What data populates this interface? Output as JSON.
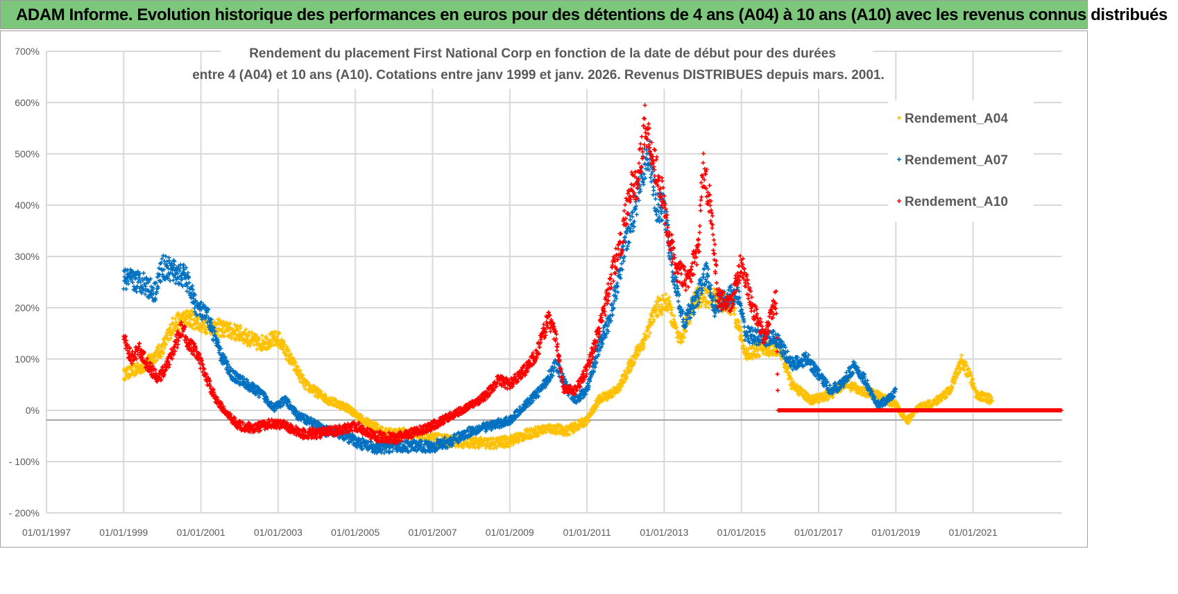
{
  "header": {
    "title": "ADAM Informe. Evolution historique des performances en euros pour des détentions de 4 ans (A04) à 10 ans (A10) avec les revenus connus distribués"
  },
  "chart_data": {
    "type": "scatter",
    "title_lines": [
      "Rendement du placement First National Corp en fonction de la date de début pour des durées",
      "entre 4 (A04) et 10 ans (A10).  Cotations entre janv 1999 et janv. 2026. Revenus DISTRIBUES depuis mars. 2001."
    ],
    "xlabel": "",
    "ylabel": "",
    "x_unit": "year",
    "xlim": [
      1997.0,
      2023.3
    ],
    "ylim": [
      -200,
      700
    ],
    "grid": true,
    "legend_position": "top-right",
    "y_ticks": [
      700,
      600,
      500,
      400,
      300,
      200,
      100,
      0,
      -100,
      -200
    ],
    "y_tick_labels": [
      "700%",
      "600%",
      "500%",
      "400%",
      "300%",
      "200%",
      "100%",
      "0%",
      "- 100%",
      "- 200%"
    ],
    "x_ticks": [
      1997,
      1999,
      2001,
      2003,
      2005,
      2007,
      2009,
      2011,
      2013,
      2015,
      2017,
      2019,
      2021
    ],
    "x_tick_labels": [
      "01/01/1997",
      "01/01/1999",
      "01/01/2001",
      "01/01/2003",
      "01/01/2005",
      "01/01/2007",
      "01/01/2009",
      "01/01/2011",
      "01/01/2013",
      "01/01/2015",
      "01/01/2017",
      "01/01/2019",
      "01/01/2021"
    ],
    "series": [
      {
        "name": "Rendement_A04",
        "color": "#ffc000",
        "points": [
          [
            1999.0,
            70
          ],
          [
            1999.5,
            85
          ],
          [
            2000.0,
            120
          ],
          [
            2000.3,
            170
          ],
          [
            2000.7,
            180
          ],
          [
            2001.0,
            170
          ],
          [
            2001.5,
            160
          ],
          [
            2002.0,
            150
          ],
          [
            2002.5,
            130
          ],
          [
            2003.0,
            140
          ],
          [
            2003.4,
            90
          ],
          [
            2003.7,
            50
          ],
          [
            2004.3,
            20
          ],
          [
            2004.8,
            5
          ],
          [
            2005.2,
            -20
          ],
          [
            2005.8,
            -45
          ],
          [
            2006.5,
            -45
          ],
          [
            2007.0,
            -55
          ],
          [
            2007.5,
            -60
          ],
          [
            2008.5,
            -65
          ],
          [
            2009.0,
            -60
          ],
          [
            2009.5,
            -45
          ],
          [
            2010.0,
            -35
          ],
          [
            2010.5,
            -40
          ],
          [
            2011.0,
            -20
          ],
          [
            2011.3,
            20
          ],
          [
            2011.8,
            40
          ],
          [
            2012.2,
            100
          ],
          [
            2012.5,
            140
          ],
          [
            2012.8,
            200
          ],
          [
            2013.1,
            210
          ],
          [
            2013.4,
            130
          ],
          [
            2013.8,
            220
          ],
          [
            2014.3,
            220
          ],
          [
            2014.8,
            200
          ],
          [
            2015.1,
            110
          ],
          [
            2015.5,
            120
          ],
          [
            2016.0,
            120
          ],
          [
            2016.3,
            50
          ],
          [
            2016.8,
            20
          ],
          [
            2017.3,
            30
          ],
          [
            2017.7,
            55
          ],
          [
            2018.0,
            40
          ],
          [
            2018.5,
            30
          ],
          [
            2019.0,
            10
          ],
          [
            2019.3,
            -20
          ],
          [
            2019.6,
            5
          ],
          [
            2020.0,
            15
          ],
          [
            2020.4,
            40
          ],
          [
            2020.7,
            95
          ],
          [
            2020.9,
            70
          ],
          [
            2021.1,
            30
          ],
          [
            2021.5,
            20
          ]
        ]
      },
      {
        "name": "Rendement_A07",
        "color": "#0070c0",
        "points": [
          [
            1999.0,
            255
          ],
          [
            1999.5,
            250
          ],
          [
            1999.8,
            230
          ],
          [
            2000.0,
            280
          ],
          [
            2000.3,
            270
          ],
          [
            2000.6,
            260
          ],
          [
            2000.9,
            200
          ],
          [
            2001.2,
            180
          ],
          [
            2001.5,
            110
          ],
          [
            2001.8,
            70
          ],
          [
            2002.2,
            50
          ],
          [
            2002.6,
            30
          ],
          [
            2002.9,
            5
          ],
          [
            2003.2,
            20
          ],
          [
            2003.5,
            -10
          ],
          [
            2003.8,
            -20
          ],
          [
            2004.2,
            -40
          ],
          [
            2004.6,
            -45
          ],
          [
            2005.0,
            -60
          ],
          [
            2005.5,
            -75
          ],
          [
            2006.0,
            -70
          ],
          [
            2006.5,
            -70
          ],
          [
            2007.0,
            -70
          ],
          [
            2007.5,
            -60
          ],
          [
            2008.0,
            -40
          ],
          [
            2008.5,
            -30
          ],
          [
            2009.0,
            -20
          ],
          [
            2009.4,
            10
          ],
          [
            2009.8,
            40
          ],
          [
            2010.2,
            90
          ],
          [
            2010.5,
            40
          ],
          [
            2010.7,
            20
          ],
          [
            2011.0,
            40
          ],
          [
            2011.3,
            120
          ],
          [
            2011.6,
            180
          ],
          [
            2011.8,
            250
          ],
          [
            2012.0,
            330
          ],
          [
            2012.2,
            380
          ],
          [
            2012.4,
            450
          ],
          [
            2012.6,
            510
          ],
          [
            2012.8,
            390
          ],
          [
            2013.0,
            400
          ],
          [
            2013.2,
            280
          ],
          [
            2013.5,
            170
          ],
          [
            2013.8,
            210
          ],
          [
            2014.1,
            270
          ],
          [
            2014.3,
            200
          ],
          [
            2014.6,
            220
          ],
          [
            2014.9,
            230
          ],
          [
            2015.1,
            150
          ],
          [
            2015.5,
            140
          ],
          [
            2015.9,
            140
          ],
          [
            2016.3,
            90
          ],
          [
            2016.7,
            100
          ],
          [
            2017.0,
            70
          ],
          [
            2017.3,
            40
          ],
          [
            2017.6,
            50
          ],
          [
            2017.9,
            85
          ],
          [
            2018.2,
            60
          ],
          [
            2018.5,
            10
          ],
          [
            2018.8,
            20
          ],
          [
            2019.0,
            40
          ]
        ]
      },
      {
        "name": "Rendement_A10",
        "color": "#ff0000",
        "points": [
          [
            1999.0,
            140
          ],
          [
            1999.2,
            100
          ],
          [
            1999.4,
            120
          ],
          [
            1999.6,
            90
          ],
          [
            1999.9,
            60
          ],
          [
            2000.2,
            100
          ],
          [
            2000.5,
            160
          ],
          [
            2000.7,
            130
          ],
          [
            2000.9,
            110
          ],
          [
            2001.1,
            70
          ],
          [
            2001.4,
            20
          ],
          [
            2001.7,
            -10
          ],
          [
            2002.0,
            -30
          ],
          [
            2002.4,
            -35
          ],
          [
            2002.8,
            -25
          ],
          [
            2003.2,
            -30
          ],
          [
            2003.6,
            -45
          ],
          [
            2004.0,
            -45
          ],
          [
            2004.5,
            -40
          ],
          [
            2005.0,
            -30
          ],
          [
            2005.5,
            -50
          ],
          [
            2006.0,
            -55
          ],
          [
            2006.5,
            -45
          ],
          [
            2007.0,
            -30
          ],
          [
            2007.5,
            -10
          ],
          [
            2008.0,
            10
          ],
          [
            2008.4,
            30
          ],
          [
            2008.7,
            60
          ],
          [
            2009.0,
            50
          ],
          [
            2009.4,
            80
          ],
          [
            2009.7,
            110
          ],
          [
            2010.0,
            180
          ],
          [
            2010.2,
            140
          ],
          [
            2010.4,
            40
          ],
          [
            2010.7,
            40
          ],
          [
            2011.0,
            80
          ],
          [
            2011.4,
            180
          ],
          [
            2011.7,
            280
          ],
          [
            2011.9,
            330
          ],
          [
            2012.1,
            430
          ],
          [
            2012.3,
            440
          ],
          [
            2012.5,
            560
          ],
          [
            2012.7,
            500
          ],
          [
            2012.9,
            440
          ],
          [
            2013.1,
            350
          ],
          [
            2013.3,
            280
          ],
          [
            2013.6,
            250
          ],
          [
            2013.9,
            320
          ],
          [
            2014.0,
            480
          ],
          [
            2014.2,
            400
          ],
          [
            2014.4,
            220
          ],
          [
            2014.7,
            200
          ],
          [
            2015.0,
            290
          ],
          [
            2015.3,
            200
          ],
          [
            2015.6,
            140
          ],
          [
            2015.9,
            220
          ],
          [
            2015.95,
            0
          ],
          [
            2023.3,
            0
          ]
        ]
      }
    ]
  }
}
